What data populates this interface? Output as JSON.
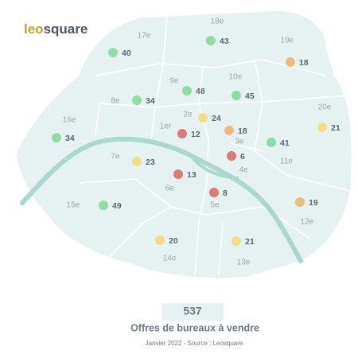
{
  "logo": [
    "leo",
    "square"
  ],
  "districts": [
    {
      "name": "18e",
      "count": 43,
      "color": "#8fdca8"
    },
    {
      "name": "17e",
      "count": 40,
      "color": "#8fdca8"
    },
    {
      "name": "19e",
      "count": 18,
      "color": "#eebb7b"
    },
    {
      "name": "9e",
      "count": 48,
      "color": "#8fdca8"
    },
    {
      "name": "10e",
      "count": 45,
      "color": "#8fdca8"
    },
    {
      "name": "8e",
      "count": 34,
      "color": "#8fdca8"
    },
    {
      "name": "20e",
      "count": 21,
      "color": "#f5dd86"
    },
    {
      "name": "2e",
      "count": 24,
      "color": "#f5dd86"
    },
    {
      "name": "3e",
      "count": 18,
      "color": "#eebb7b"
    },
    {
      "name": "1er",
      "count": 12,
      "color": "#de7a7a"
    },
    {
      "name": "16e",
      "count": 34,
      "color": "#8fdca8"
    },
    {
      "name": "11e",
      "count": 41,
      "color": "#8fdca8"
    },
    {
      "name": "4e",
      "count": 6,
      "color": "#de7a7a"
    },
    {
      "name": "7e",
      "count": 23,
      "color": "#f5dd86"
    },
    {
      "name": "6e",
      "count": 13,
      "color": "#de7a7a"
    },
    {
      "name": "5e",
      "count": 8,
      "color": "#de7a7a"
    },
    {
      "name": "15e",
      "count": 49,
      "color": "#8fdca8"
    },
    {
      "name": "12e",
      "count": 19,
      "color": "#eebb7b"
    },
    {
      "name": "14e",
      "count": 20,
      "color": "#f5dd86"
    },
    {
      "name": "13e",
      "count": 21,
      "color": "#f5dd86"
    }
  ],
  "total": 537,
  "title": "Offres de bureaux à vendre",
  "source": "Janvier 2022 - Source : Leosquare"
}
